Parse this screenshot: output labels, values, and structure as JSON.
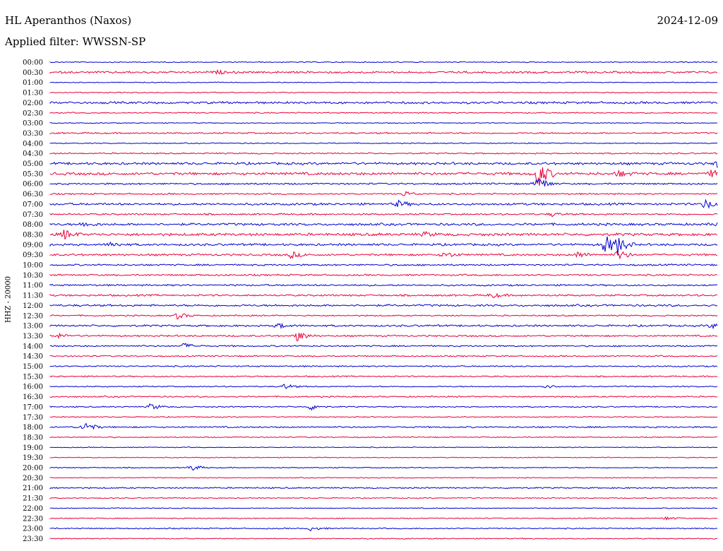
{
  "header": {
    "station": "HL Aperanthos (Naxos)",
    "date": "2024-12-09",
    "filter": "Applied filter: WWSSN-SP",
    "channel": "HHZ - 20000"
  },
  "colors": {
    "blue_trace": "#0000d0",
    "red_trace": "#e8003c"
  },
  "chart_data": {
    "type": "line",
    "title": "HL Aperanthos (Naxos)",
    "ylabel": "HHZ - 20000",
    "tick_labels": [
      "00:00",
      "00:30",
      "01:00",
      "01:30",
      "02:00",
      "02:30",
      "03:00",
      "03:30",
      "04:00",
      "04:30",
      "05:00",
      "05:30",
      "06:00",
      "06:30",
      "07:00",
      "07:30",
      "08:00",
      "08:30",
      "09:00",
      "09:30",
      "10:00",
      "10:30",
      "11:00",
      "11:30",
      "12:00",
      "12:30",
      "13:00",
      "13:30",
      "14:00",
      "14:30",
      "15:00",
      "15:30",
      "16:00",
      "16:30",
      "17:00",
      "17:30",
      "18:00",
      "18:30",
      "19:00",
      "19:30",
      "20:00",
      "20:30",
      "21:00",
      "21:30",
      "22:00",
      "22:30",
      "23:00",
      "23:30"
    ],
    "trace_colors": [
      "blue",
      "red"
    ],
    "noise_level": [
      0.6,
      1.2,
      0.5,
      0.6,
      1.3,
      0.7,
      0.5,
      0.9,
      0.6,
      0.8,
      1.4,
      1.6,
      1.0,
      0.9,
      1.3,
      1.0,
      1.4,
      1.6,
      1.3,
      1.2,
      1.0,
      1.0,
      1.0,
      1.1,
      1.2,
      0.8,
      1.1,
      1.0,
      0.9,
      0.8,
      0.8,
      0.8,
      0.7,
      0.8,
      0.7,
      0.6,
      0.9,
      0.6,
      0.5,
      0.5,
      0.6,
      0.5,
      0.8,
      0.6,
      0.5,
      0.6,
      0.7,
      0.6
    ],
    "events": [
      {
        "row": 1,
        "t": 0.25,
        "amp": 2
      },
      {
        "row": 10,
        "t": 1.0,
        "amp": 10
      },
      {
        "row": 11,
        "t": 0.73,
        "amp": 22
      },
      {
        "row": 11,
        "t": 0.85,
        "amp": 5
      },
      {
        "row": 11,
        "t": 0.99,
        "amp": 5
      },
      {
        "row": 12,
        "t": 0.73,
        "amp": 12
      },
      {
        "row": 13,
        "t": 0.53,
        "amp": 4
      },
      {
        "row": 14,
        "t": 0.52,
        "amp": 5
      },
      {
        "row": 14,
        "t": 0.98,
        "amp": 8
      },
      {
        "row": 15,
        "t": 0.75,
        "amp": 3
      },
      {
        "row": 16,
        "t": 0.05,
        "amp": 4
      },
      {
        "row": 16,
        "t": 1.0,
        "amp": 9
      },
      {
        "row": 17,
        "t": 0.02,
        "amp": 7
      },
      {
        "row": 17,
        "t": 0.56,
        "amp": 3
      },
      {
        "row": 18,
        "t": 0.09,
        "amp": 4
      },
      {
        "row": 18,
        "t": 0.83,
        "amp": 16
      },
      {
        "row": 18,
        "t": 0.85,
        "amp": 12
      },
      {
        "row": 19,
        "t": 0.36,
        "amp": 5
      },
      {
        "row": 19,
        "t": 0.59,
        "amp": 5
      },
      {
        "row": 19,
        "t": 0.79,
        "amp": 5
      },
      {
        "row": 19,
        "t": 0.85,
        "amp": 8
      },
      {
        "row": 23,
        "t": 0.66,
        "amp": 4
      },
      {
        "row": 25,
        "t": 0.19,
        "amp": 5
      },
      {
        "row": 26,
        "t": 0.34,
        "amp": 4
      },
      {
        "row": 26,
        "t": 0.99,
        "amp": 4
      },
      {
        "row": 27,
        "t": 0.37,
        "amp": 8
      },
      {
        "row": 27,
        "t": 0.01,
        "amp": 4
      },
      {
        "row": 28,
        "t": 0.2,
        "amp": 4
      },
      {
        "row": 32,
        "t": 0.35,
        "amp": 4
      },
      {
        "row": 32,
        "t": 0.74,
        "amp": 3
      },
      {
        "row": 34,
        "t": 0.15,
        "amp": 5
      },
      {
        "row": 34,
        "t": 0.39,
        "amp": 5
      },
      {
        "row": 36,
        "t": 0.05,
        "amp": 9
      },
      {
        "row": 40,
        "t": 0.21,
        "amp": 5
      },
      {
        "row": 45,
        "t": 0.92,
        "amp": 3
      },
      {
        "row": 46,
        "t": 0.39,
        "amp": 3
      }
    ]
  }
}
